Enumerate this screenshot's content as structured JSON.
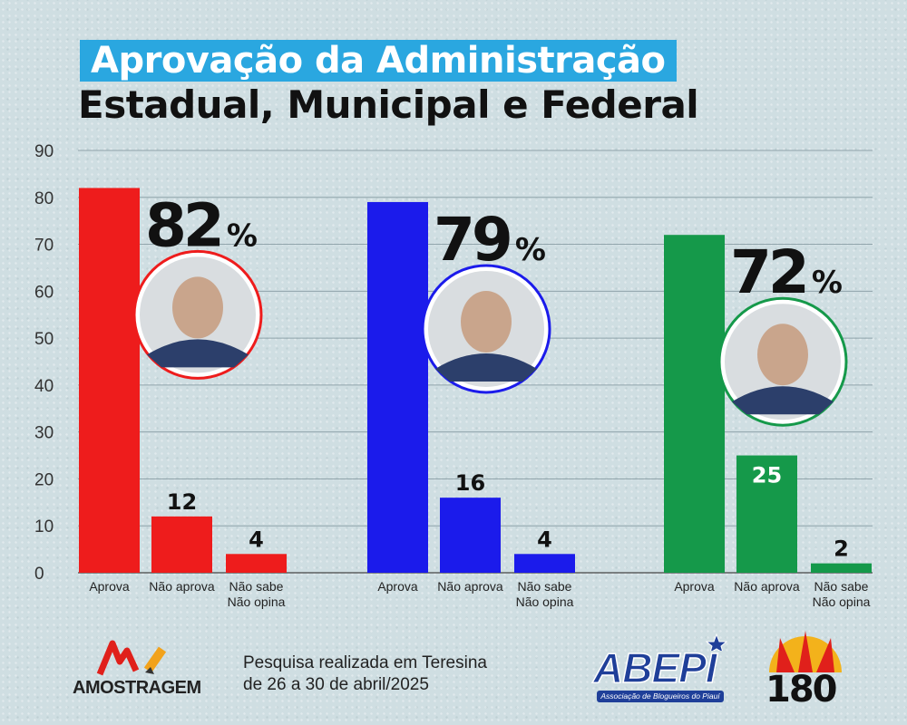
{
  "title_line1": "Aprovação da Administração",
  "title_line2": "Estadual, Municipal e Federal",
  "chart_data": {
    "type": "bar",
    "ylim": [
      0,
      90
    ],
    "yticks": [
      0,
      10,
      20,
      30,
      40,
      50,
      60,
      70,
      80,
      90
    ],
    "grid": true,
    "groups": [
      {
        "color": "#ee1c1c",
        "bars": [
          {
            "category": "Aprova",
            "value": 82
          },
          {
            "category": "Não aprova",
            "value": 12
          },
          {
            "category": "Não sabe\nNão opina",
            "value": 4
          }
        ],
        "headline_number": "82",
        "headline_unit": "%"
      },
      {
        "color": "#1b1beb",
        "bars": [
          {
            "category": "Aprova",
            "value": 79
          },
          {
            "category": "Não aprova",
            "value": 16
          },
          {
            "category": "Não sabe\nNão opina",
            "value": 4
          }
        ],
        "headline_number": "79",
        "headline_unit": "%"
      },
      {
        "color": "#15994a",
        "bars": [
          {
            "category": "Aprova",
            "value": 72
          },
          {
            "category": "Não aprova",
            "value": 25
          },
          {
            "category": "Não sabe\nNão opina",
            "value": 2
          }
        ],
        "headline_number": "72",
        "headline_unit": "%"
      }
    ]
  },
  "footer": {
    "note_line1": "Pesquisa realizada em Teresina",
    "note_line2": "de 26 a 30 de abril/2025",
    "logo_amostragem": "AMOSTRAGEM",
    "logo_abepi": "ABEPI",
    "logo_abepi_sub": "Associação de Blogueiros do Piauí",
    "logo_180": "180"
  }
}
